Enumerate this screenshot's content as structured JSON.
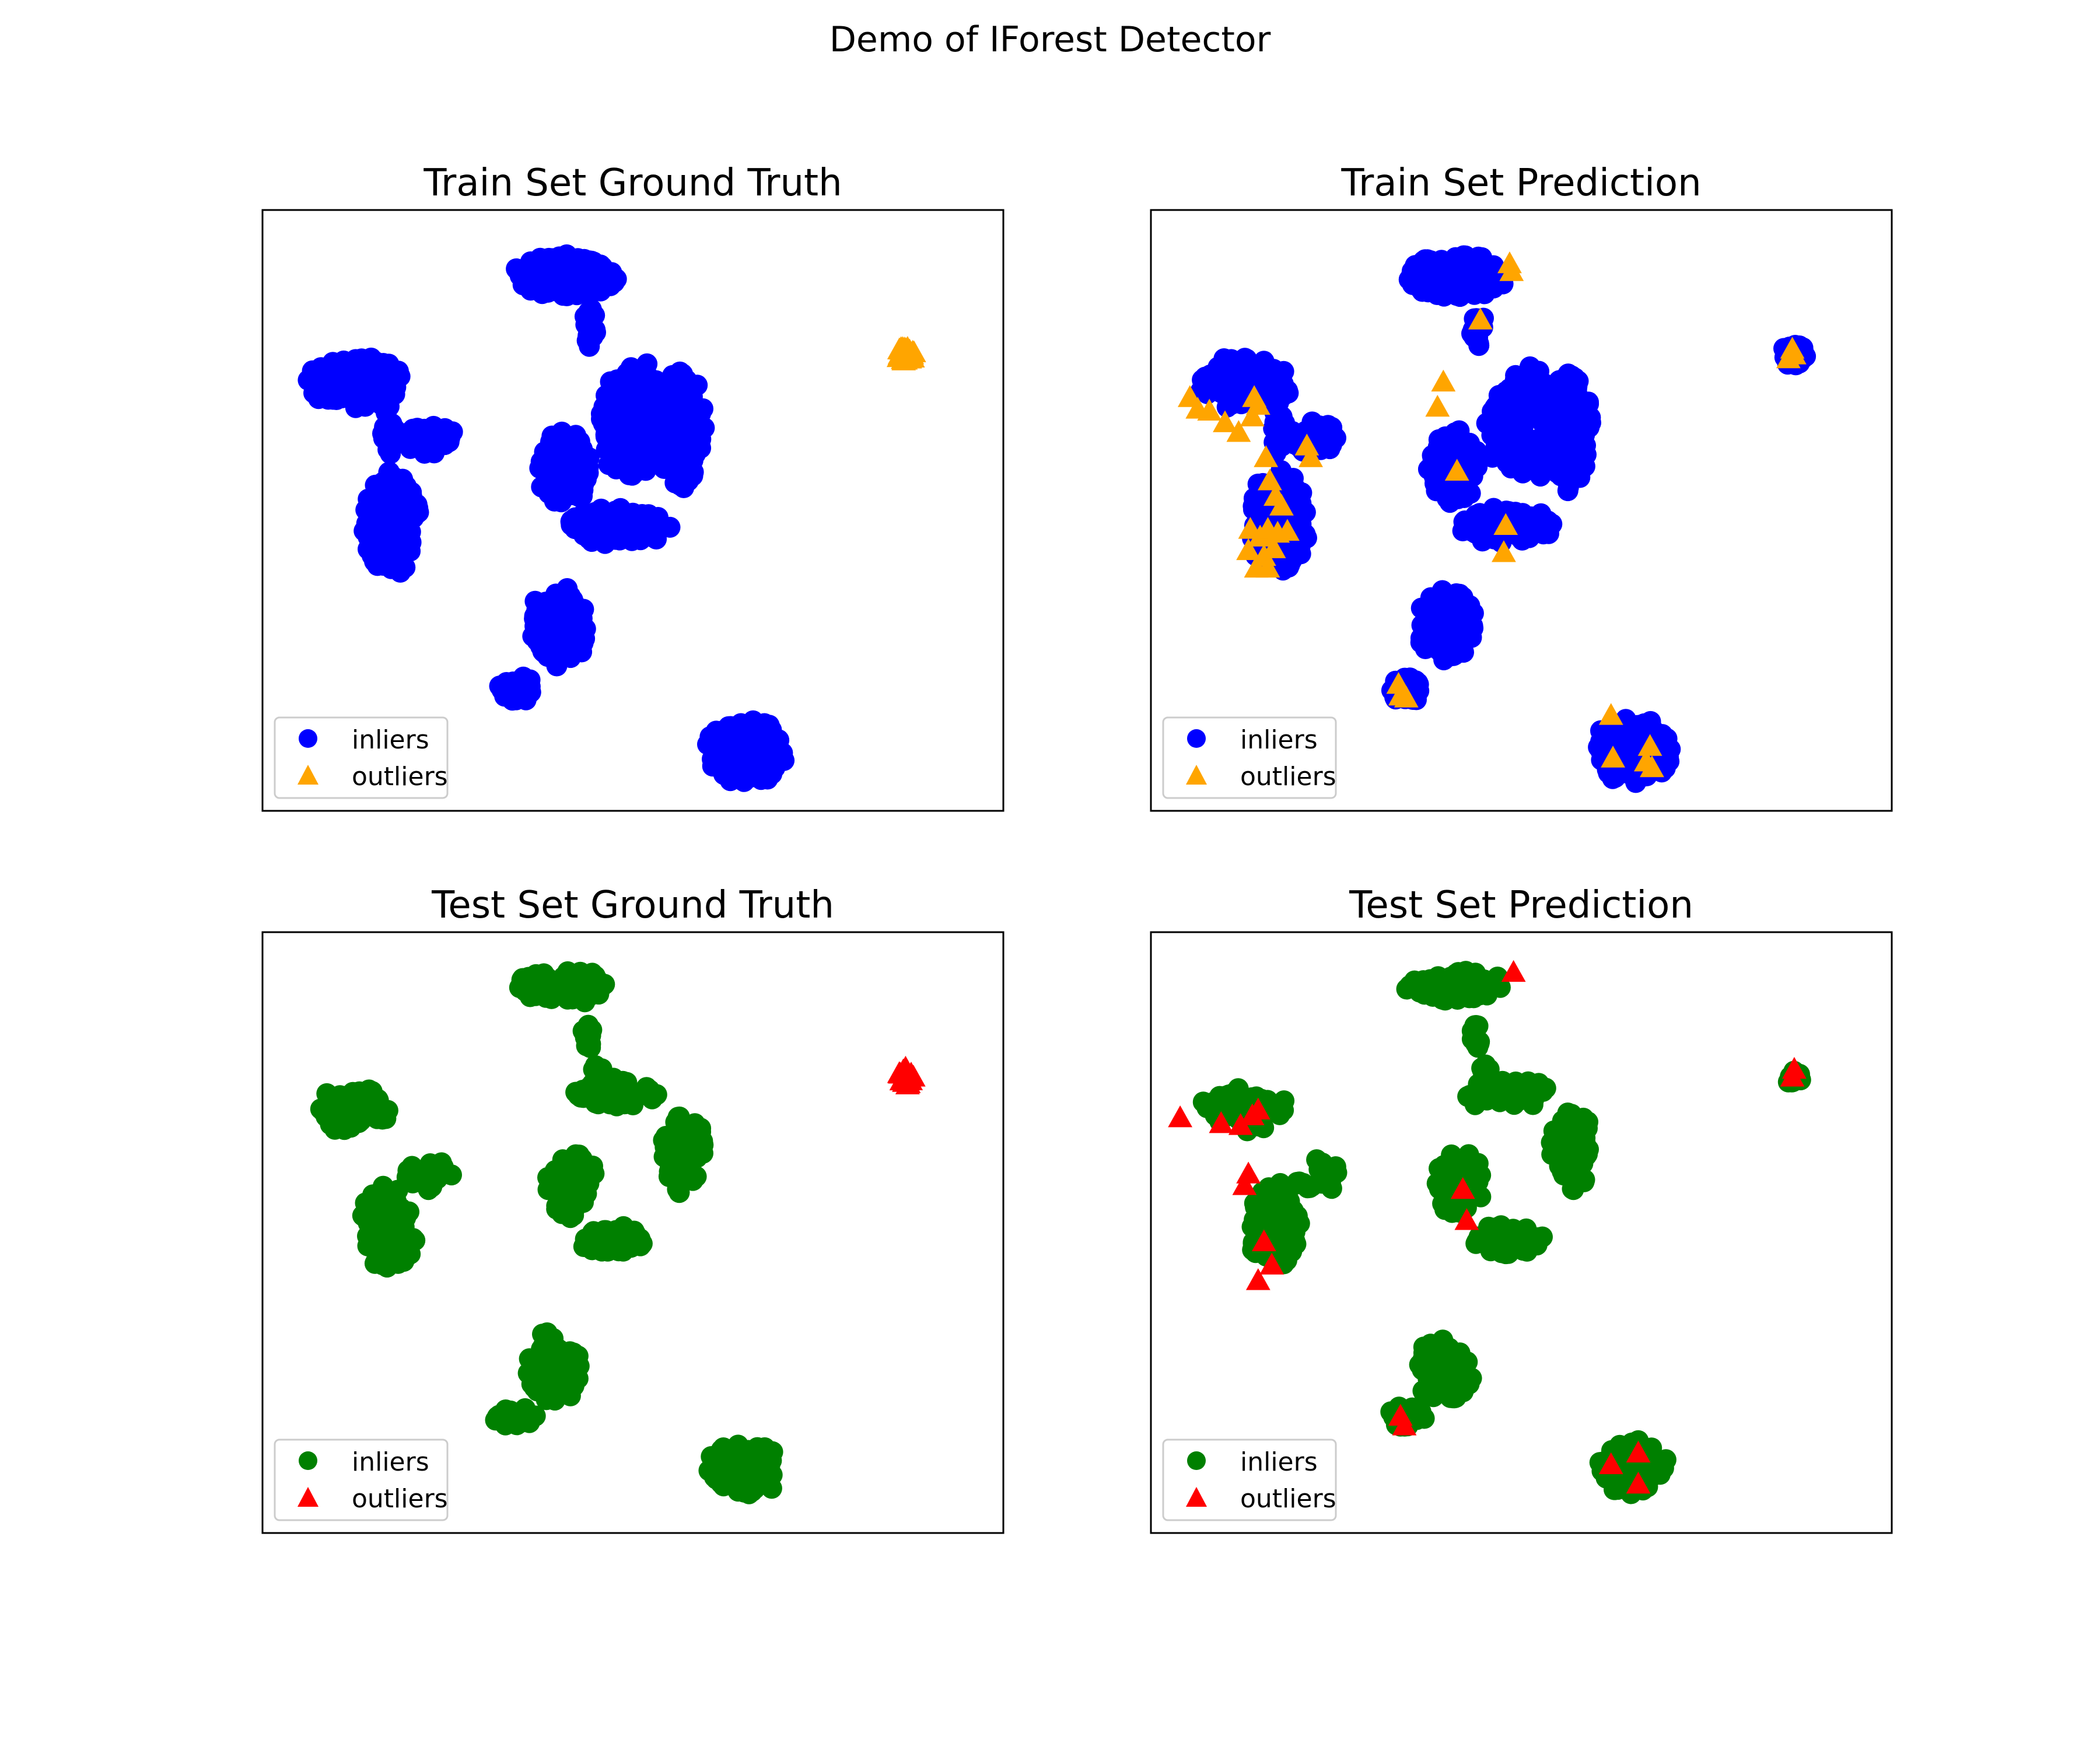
{
  "figure": {
    "title": "Demo of IForest Detector"
  },
  "chart_data": [
    {
      "type": "scatter",
      "title": "Train Set Ground Truth",
      "xlabel": "",
      "ylabel": "",
      "xlim": [
        -1.8,
        2.0
      ],
      "ylim": [
        -1.55,
        1.55
      ],
      "axes_ticks": false,
      "grid": false,
      "legend_position": "lower-left",
      "clusters": [
        {
          "name": "top",
          "cx": -0.25,
          "cy": 1.21,
          "rx": 0.28,
          "ry": 0.12,
          "n": 200,
          "series": "inliers"
        },
        {
          "name": "top-stem",
          "cx": -0.12,
          "cy": 0.92,
          "rx": 0.04,
          "ry": 0.13,
          "n": 25,
          "series": "inliers"
        },
        {
          "name": "left-upper",
          "cx": -1.32,
          "cy": 0.66,
          "rx": 0.26,
          "ry": 0.14,
          "n": 140,
          "series": "inliers"
        },
        {
          "name": "left-lower",
          "cx": -1.14,
          "cy": -0.06,
          "rx": 0.16,
          "ry": 0.28,
          "n": 200,
          "series": "inliers"
        },
        {
          "name": "left-bridge",
          "cx": -1.15,
          "cy": 0.42,
          "rx": 0.04,
          "ry": 0.16,
          "n": 20,
          "series": "inliers"
        },
        {
          "name": "left-small",
          "cx": -0.95,
          "cy": 0.37,
          "rx": 0.14,
          "ry": 0.09,
          "n": 45,
          "series": "inliers"
        },
        {
          "name": "middle-ring",
          "cx": 0.12,
          "cy": 0.45,
          "rx": 0.22,
          "ry": 0.32,
          "n": 160,
          "series": "inliers"
        },
        {
          "name": "middle-right-band",
          "cx": 0.35,
          "cy": 0.42,
          "rx": 0.12,
          "ry": 0.34,
          "n": 140,
          "series": "inliers"
        },
        {
          "name": "middle-blob",
          "cx": -0.25,
          "cy": 0.22,
          "rx": 0.14,
          "ry": 0.2,
          "n": 130,
          "series": "inliers"
        },
        {
          "name": "middle-horizontal",
          "cx": 0.02,
          "cy": -0.08,
          "rx": 0.28,
          "ry": 0.1,
          "n": 100,
          "series": "inliers"
        },
        {
          "name": "middle-diagonal",
          "cx": -0.28,
          "cy": -0.6,
          "rx": 0.16,
          "ry": 0.22,
          "n": 120,
          "series": "inliers"
        },
        {
          "name": "middle-tail",
          "cx": -0.5,
          "cy": -0.92,
          "rx": 0.1,
          "ry": 0.08,
          "n": 40,
          "series": "inliers"
        },
        {
          "name": "bottom-right",
          "cx": 0.68,
          "cy": -1.24,
          "rx": 0.22,
          "ry": 0.18,
          "n": 160,
          "series": "inliers"
        },
        {
          "name": "far-right",
          "cx": 1.5,
          "cy": 0.8,
          "rx": 0.05,
          "ry": 0.05,
          "n": 30,
          "series": "outliers"
        }
      ],
      "outlier_points": [],
      "series": [
        {
          "name": "inliers",
          "marker": "circle",
          "color": "#0000ff"
        },
        {
          "name": "outliers",
          "marker": "triangle",
          "color": "#ffa500"
        }
      ]
    },
    {
      "type": "scatter",
      "title": "Train Set Prediction",
      "xlabel": "",
      "ylabel": "",
      "xlim": [
        -1.8,
        2.0
      ],
      "ylim": [
        -1.55,
        1.55
      ],
      "axes_ticks": false,
      "grid": false,
      "legend_position": "lower-left",
      "clusters": [
        {
          "name": "top",
          "cx": -0.25,
          "cy": 1.21,
          "rx": 0.28,
          "ry": 0.12,
          "n": 200,
          "series": "inliers"
        },
        {
          "name": "top-stem",
          "cx": -0.12,
          "cy": 0.92,
          "rx": 0.04,
          "ry": 0.13,
          "n": 25,
          "series": "inliers"
        },
        {
          "name": "left-upper",
          "cx": -1.32,
          "cy": 0.66,
          "rx": 0.26,
          "ry": 0.14,
          "n": 140,
          "series": "inliers"
        },
        {
          "name": "left-lower",
          "cx": -1.14,
          "cy": -0.06,
          "rx": 0.16,
          "ry": 0.28,
          "n": 200,
          "series": "inliers"
        },
        {
          "name": "left-bridge",
          "cx": -1.15,
          "cy": 0.42,
          "rx": 0.04,
          "ry": 0.16,
          "n": 20,
          "series": "inliers"
        },
        {
          "name": "left-small",
          "cx": -0.95,
          "cy": 0.37,
          "rx": 0.14,
          "ry": 0.09,
          "n": 45,
          "series": "inliers"
        },
        {
          "name": "middle-ring",
          "cx": 0.12,
          "cy": 0.45,
          "rx": 0.22,
          "ry": 0.32,
          "n": 160,
          "series": "inliers"
        },
        {
          "name": "middle-right-band",
          "cx": 0.35,
          "cy": 0.42,
          "rx": 0.12,
          "ry": 0.34,
          "n": 140,
          "series": "inliers"
        },
        {
          "name": "middle-blob",
          "cx": -0.25,
          "cy": 0.22,
          "rx": 0.14,
          "ry": 0.2,
          "n": 130,
          "series": "inliers"
        },
        {
          "name": "middle-horizontal",
          "cx": 0.02,
          "cy": -0.08,
          "rx": 0.28,
          "ry": 0.1,
          "n": 100,
          "series": "inliers"
        },
        {
          "name": "middle-diagonal",
          "cx": -0.28,
          "cy": -0.6,
          "rx": 0.16,
          "ry": 0.22,
          "n": 120,
          "series": "inliers"
        },
        {
          "name": "middle-tail",
          "cx": -0.5,
          "cy": -0.92,
          "rx": 0.1,
          "ry": 0.08,
          "n": 40,
          "series": "inliers"
        },
        {
          "name": "bottom-right",
          "cx": 0.68,
          "cy": -1.24,
          "rx": 0.22,
          "ry": 0.18,
          "n": 160,
          "series": "inliers"
        },
        {
          "name": "far-right",
          "cx": 1.5,
          "cy": 0.8,
          "rx": 0.07,
          "ry": 0.07,
          "n": 25,
          "series": "inliers"
        }
      ],
      "outlier_points": [
        [
          0.04,
          1.27
        ],
        [
          0.05,
          1.23
        ],
        [
          -0.11,
          0.98
        ],
        [
          1.49,
          0.83
        ],
        [
          1.47,
          0.78
        ],
        [
          1.5,
          0.8
        ],
        [
          -0.3,
          0.66
        ],
        [
          -0.33,
          0.53
        ],
        [
          -1.6,
          0.58
        ],
        [
          -1.56,
          0.52
        ],
        [
          -1.5,
          0.51
        ],
        [
          -1.42,
          0.45
        ],
        [
          -1.35,
          0.4
        ],
        [
          -1.28,
          0.48
        ],
        [
          -1.25,
          0.54
        ],
        [
          -1.27,
          0.58
        ],
        [
          -1.0,
          0.33
        ],
        [
          -0.98,
          0.27
        ],
        [
          -1.21,
          0.27
        ],
        [
          -1.19,
          0.15
        ],
        [
          -1.16,
          0.07
        ],
        [
          -1.13,
          0.02
        ],
        [
          -1.29,
          -0.1
        ],
        [
          -1.24,
          -0.14
        ],
        [
          -1.2,
          -0.1
        ],
        [
          -1.15,
          -0.12
        ],
        [
          -1.1,
          -0.11
        ],
        [
          -1.3,
          -0.21
        ],
        [
          -1.22,
          -0.24
        ],
        [
          -1.17,
          -0.2
        ],
        [
          -1.26,
          -0.3
        ],
        [
          -1.2,
          -0.3
        ],
        [
          -0.23,
          0.2
        ],
        [
          0.02,
          -0.08
        ],
        [
          0.01,
          -0.22
        ],
        [
          -0.53,
          -0.9
        ],
        [
          -0.52,
          -0.96
        ],
        [
          -0.49,
          -0.97
        ],
        [
          0.56,
          -1.06
        ],
        [
          0.57,
          -1.28
        ],
        [
          0.76,
          -1.22
        ],
        [
          0.74,
          -1.3
        ],
        [
          0.77,
          -1.33
        ]
      ],
      "series": [
        {
          "name": "inliers",
          "marker": "circle",
          "color": "#0000ff"
        },
        {
          "name": "outliers",
          "marker": "triangle",
          "color": "#ffa500"
        }
      ]
    },
    {
      "type": "scatter",
      "title": "Test Set Ground Truth",
      "xlabel": "",
      "ylabel": "",
      "xlim": [
        -1.8,
        2.0
      ],
      "ylim": [
        -1.55,
        1.55
      ],
      "axes_ticks": false,
      "grid": false,
      "legend_position": "lower-left",
      "clusters": [
        {
          "name": "top",
          "cx": -0.25,
          "cy": 1.27,
          "rx": 0.28,
          "ry": 0.09,
          "n": 90,
          "series": "inliers"
        },
        {
          "name": "top-stem",
          "cx": -0.13,
          "cy": 1.02,
          "rx": 0.03,
          "ry": 0.08,
          "n": 10,
          "series": "inliers"
        },
        {
          "name": "top-dot",
          "cx": -0.08,
          "cy": 0.85,
          "rx": 0.03,
          "ry": 0.02,
          "n": 5,
          "series": "inliers"
        },
        {
          "name": "left-upper",
          "cx": -1.32,
          "cy": 0.63,
          "rx": 0.24,
          "ry": 0.12,
          "n": 70,
          "series": "inliers"
        },
        {
          "name": "left-lower",
          "cx": -1.16,
          "cy": 0.02,
          "rx": 0.15,
          "ry": 0.24,
          "n": 90,
          "series": "inliers"
        },
        {
          "name": "left-small",
          "cx": -0.95,
          "cy": 0.29,
          "rx": 0.14,
          "ry": 0.09,
          "n": 20,
          "series": "inliers"
        },
        {
          "name": "middle-ring",
          "cx": 0.02,
          "cy": 0.72,
          "rx": 0.26,
          "ry": 0.08,
          "n": 50,
          "series": "inliers"
        },
        {
          "name": "middle-right-band",
          "cx": 0.36,
          "cy": 0.42,
          "rx": 0.12,
          "ry": 0.22,
          "n": 70,
          "series": "inliers"
        },
        {
          "name": "middle-blob",
          "cx": -0.22,
          "cy": 0.25,
          "rx": 0.14,
          "ry": 0.18,
          "n": 60,
          "series": "inliers"
        },
        {
          "name": "middle-horizontal",
          "cx": 0.02,
          "cy": -0.04,
          "rx": 0.2,
          "ry": 0.08,
          "n": 45,
          "series": "inliers"
        },
        {
          "name": "middle-diagonal",
          "cx": -0.3,
          "cy": -0.7,
          "rx": 0.16,
          "ry": 0.2,
          "n": 60,
          "series": "inliers"
        },
        {
          "name": "middle-tail",
          "cx": -0.5,
          "cy": -0.95,
          "rx": 0.12,
          "ry": 0.06,
          "n": 20,
          "series": "inliers"
        },
        {
          "name": "bottom-right",
          "cx": 0.67,
          "cy": -1.22,
          "rx": 0.2,
          "ry": 0.15,
          "n": 80,
          "series": "inliers"
        },
        {
          "name": "far-right",
          "cx": 1.5,
          "cy": 0.8,
          "rx": 0.05,
          "ry": 0.06,
          "n": 18,
          "series": "outliers"
        }
      ],
      "outlier_points": [],
      "series": [
        {
          "name": "inliers",
          "marker": "circle",
          "color": "#008000"
        },
        {
          "name": "outliers",
          "marker": "triangle",
          "color": "#ff0000"
        }
      ]
    },
    {
      "type": "scatter",
      "title": "Test Set Prediction",
      "xlabel": "",
      "ylabel": "",
      "xlim": [
        -1.8,
        2.0
      ],
      "ylim": [
        -1.55,
        1.55
      ],
      "axes_ticks": false,
      "grid": false,
      "legend_position": "lower-left",
      "clusters": [
        {
          "name": "top",
          "cx": -0.25,
          "cy": 1.27,
          "rx": 0.28,
          "ry": 0.09,
          "n": 90,
          "series": "inliers"
        },
        {
          "name": "top-stem",
          "cx": -0.13,
          "cy": 1.02,
          "rx": 0.03,
          "ry": 0.08,
          "n": 10,
          "series": "inliers"
        },
        {
          "name": "top-dot",
          "cx": -0.08,
          "cy": 0.85,
          "rx": 0.03,
          "ry": 0.02,
          "n": 5,
          "series": "inliers"
        },
        {
          "name": "left-upper",
          "cx": -1.32,
          "cy": 0.63,
          "rx": 0.24,
          "ry": 0.12,
          "n": 70,
          "series": "inliers"
        },
        {
          "name": "left-lower",
          "cx": -1.16,
          "cy": 0.02,
          "rx": 0.15,
          "ry": 0.24,
          "n": 90,
          "series": "inliers"
        },
        {
          "name": "left-small",
          "cx": -0.95,
          "cy": 0.29,
          "rx": 0.14,
          "ry": 0.09,
          "n": 20,
          "series": "inliers"
        },
        {
          "name": "middle-ring",
          "cx": 0.02,
          "cy": 0.72,
          "rx": 0.26,
          "ry": 0.08,
          "n": 50,
          "series": "inliers"
        },
        {
          "name": "middle-right-band",
          "cx": 0.36,
          "cy": 0.42,
          "rx": 0.12,
          "ry": 0.22,
          "n": 70,
          "series": "inliers"
        },
        {
          "name": "middle-blob",
          "cx": -0.22,
          "cy": 0.25,
          "rx": 0.14,
          "ry": 0.18,
          "n": 60,
          "series": "inliers"
        },
        {
          "name": "middle-horizontal",
          "cx": 0.02,
          "cy": -0.04,
          "rx": 0.2,
          "ry": 0.08,
          "n": 45,
          "series": "inliers"
        },
        {
          "name": "middle-diagonal",
          "cx": -0.3,
          "cy": -0.7,
          "rx": 0.16,
          "ry": 0.2,
          "n": 60,
          "series": "inliers"
        },
        {
          "name": "middle-tail",
          "cx": -0.5,
          "cy": -0.95,
          "rx": 0.12,
          "ry": 0.06,
          "n": 20,
          "series": "inliers"
        },
        {
          "name": "bottom-right",
          "cx": 0.67,
          "cy": -1.22,
          "rx": 0.2,
          "ry": 0.15,
          "n": 80,
          "series": "inliers"
        },
        {
          "name": "far-right",
          "cx": 1.5,
          "cy": 0.8,
          "rx": 0.04,
          "ry": 0.05,
          "n": 10,
          "series": "inliers"
        }
      ],
      "outlier_points": [
        [
          0.06,
          1.34
        ],
        [
          1.5,
          0.84
        ],
        [
          1.49,
          0.8
        ],
        [
          -1.65,
          0.59
        ],
        [
          -1.44,
          0.56
        ],
        [
          -1.34,
          0.55
        ],
        [
          -1.28,
          0.6
        ],
        [
          -1.25,
          0.63
        ],
        [
          -1.3,
          0.3
        ],
        [
          -1.32,
          0.24
        ],
        [
          -1.22,
          -0.05
        ],
        [
          -1.18,
          -0.17
        ],
        [
          -1.25,
          -0.25
        ],
        [
          -0.2,
          0.22
        ],
        [
          -0.18,
          0.06
        ],
        [
          -0.52,
          -0.95
        ],
        [
          -0.5,
          -1.0
        ],
        [
          0.56,
          -1.2
        ],
        [
          0.7,
          -1.14
        ],
        [
          0.7,
          -1.3
        ]
      ],
      "series": [
        {
          "name": "inliers",
          "marker": "circle",
          "color": "#008000"
        },
        {
          "name": "outliers",
          "marker": "triangle",
          "color": "#ff0000"
        }
      ]
    }
  ]
}
